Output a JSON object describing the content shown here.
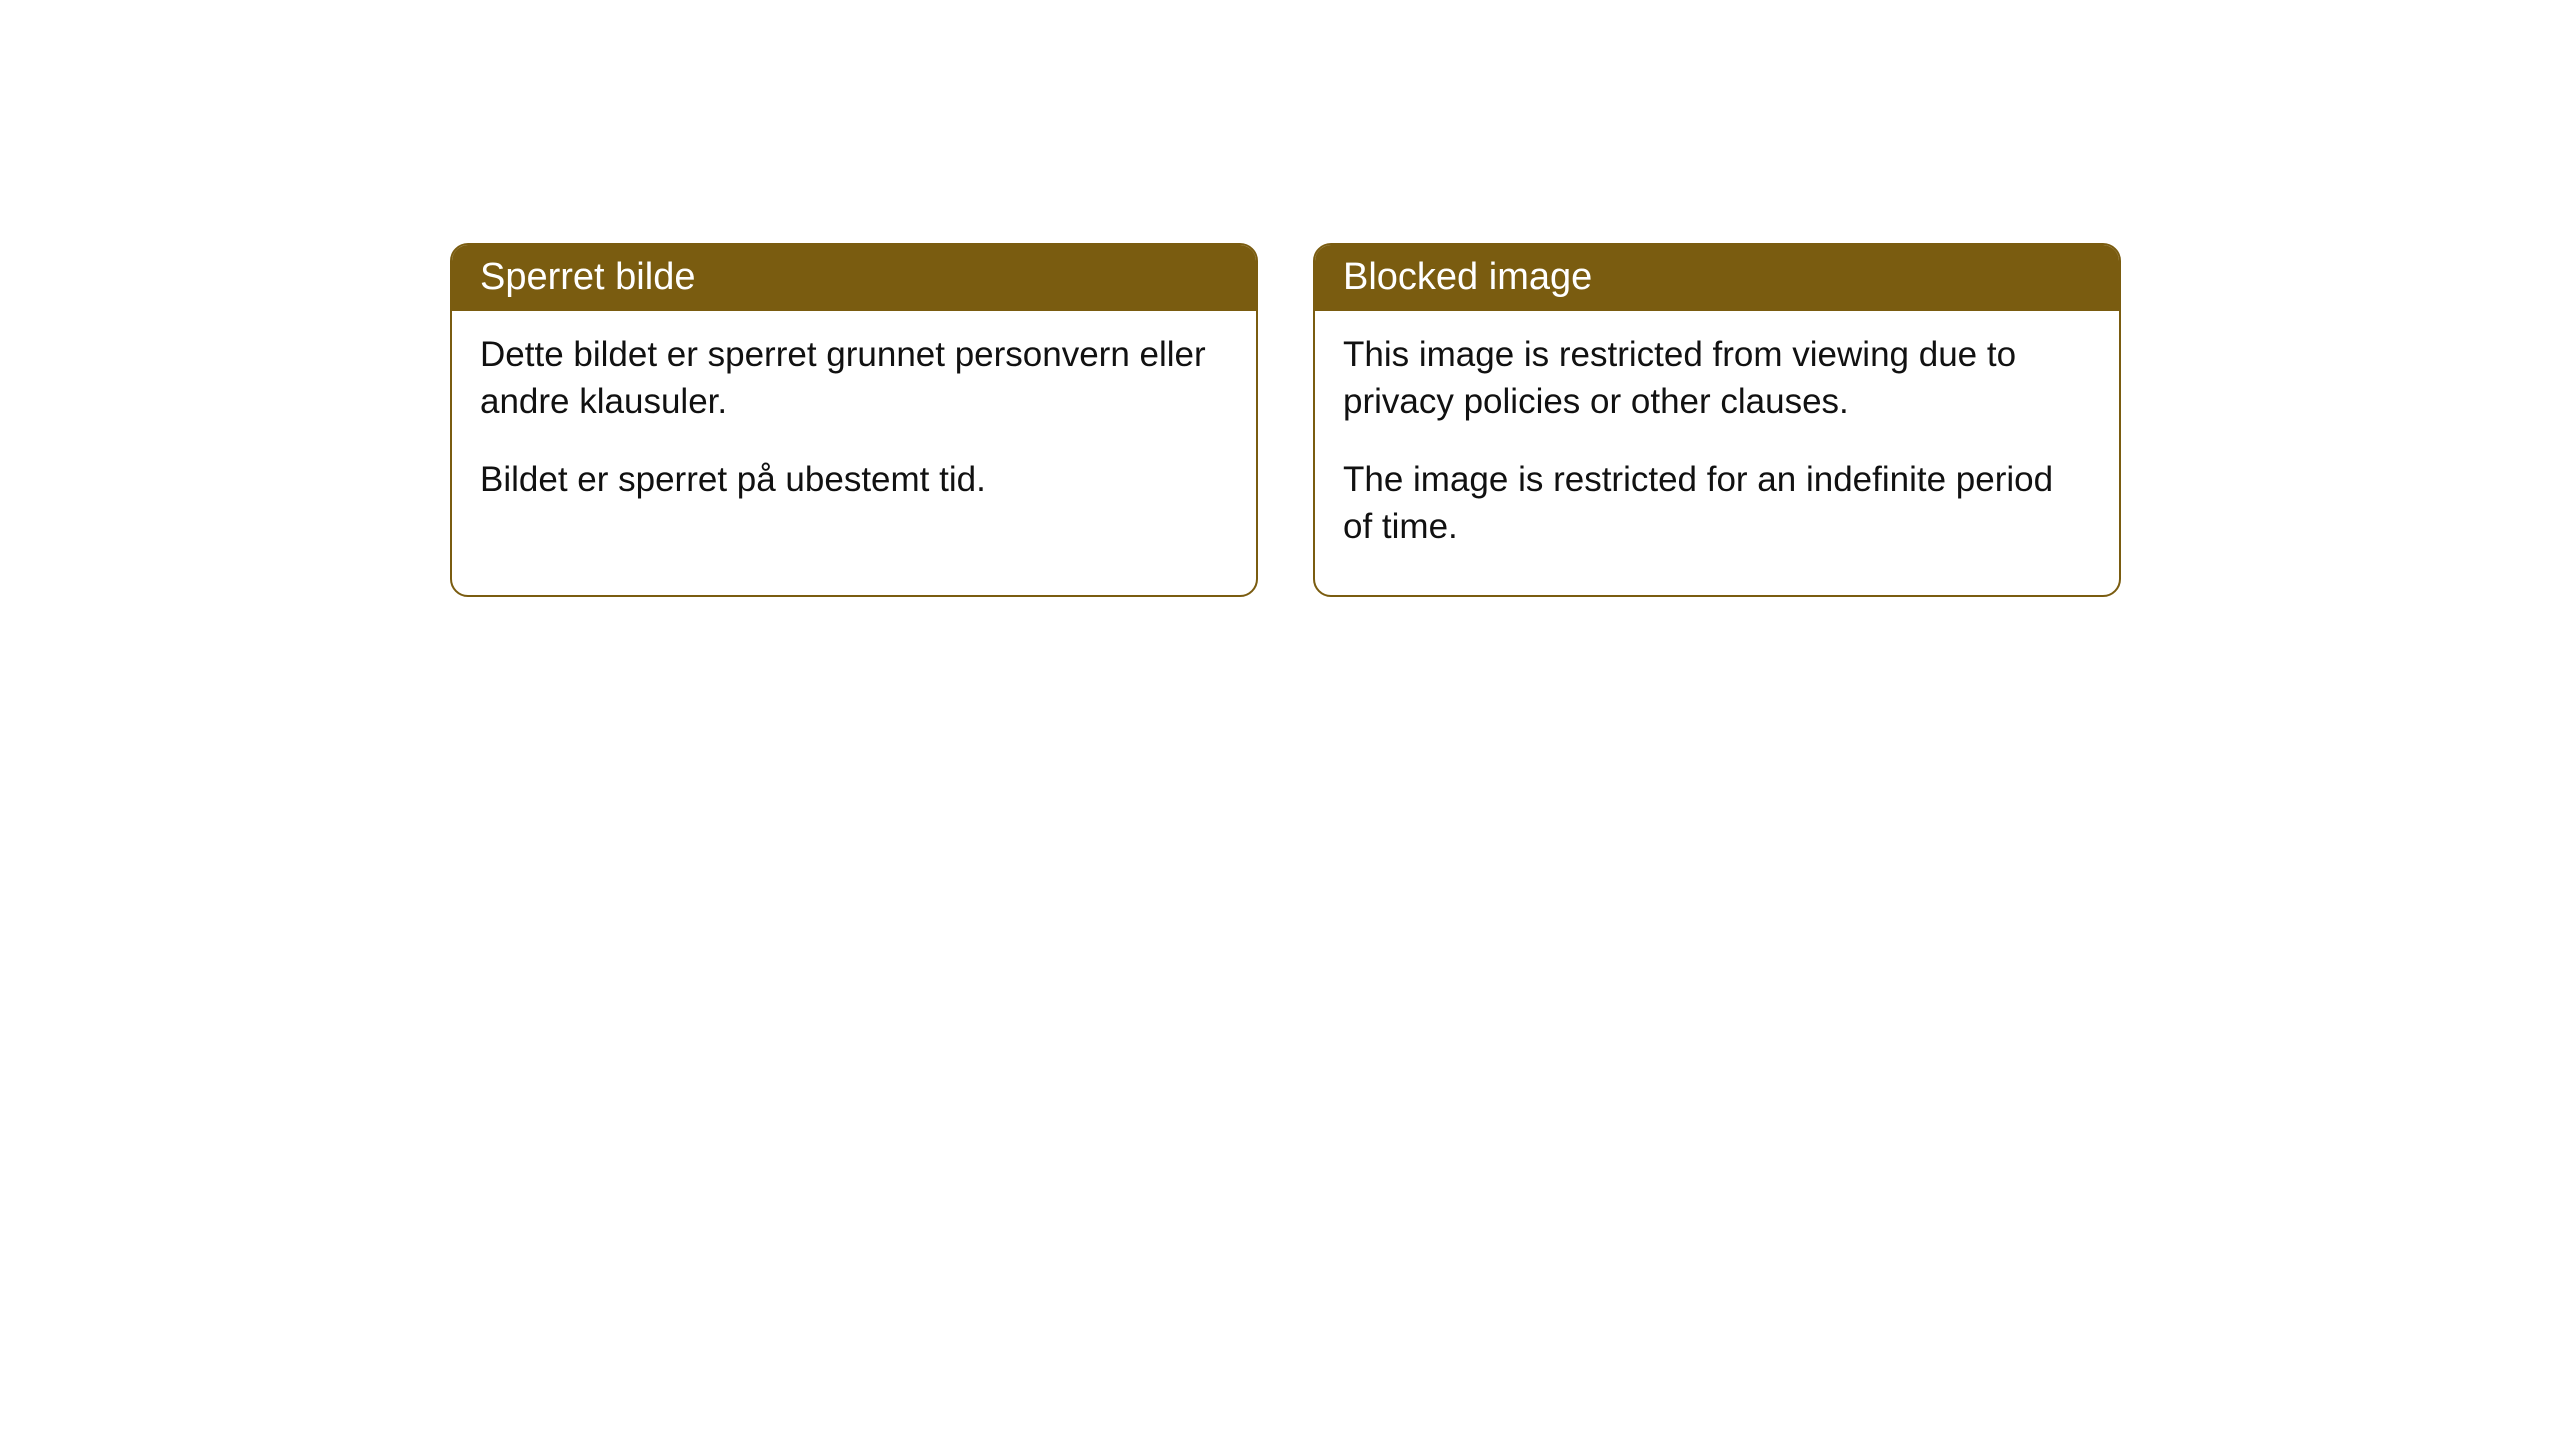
{
  "colors": {
    "header_bg": "#7a5c10",
    "header_text": "#ffffff",
    "border": "#7a5c10",
    "body_bg": "#ffffff",
    "body_text": "#111111"
  },
  "cards": [
    {
      "title": "Sperret bilde",
      "para1": "Dette bildet er sperret grunnet personvern eller andre klausuler.",
      "para2": "Bildet er sperret på ubestemt tid."
    },
    {
      "title": "Blocked image",
      "para1": "This image is restricted from viewing due to privacy policies or other clauses.",
      "para2": "The image is restricted for an indefinite period of time."
    }
  ]
}
